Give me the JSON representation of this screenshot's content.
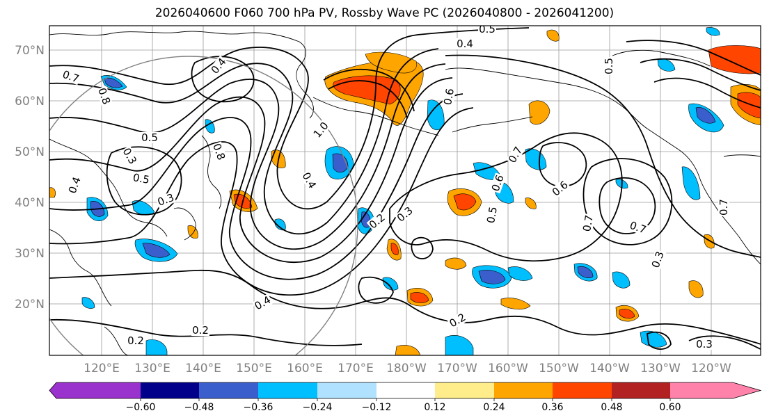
{
  "title": "2026040600 F060 700 hPa PV, Rossby Wave PC (2026040800 - 2026041200)",
  "lat_labels": [
    "70°N",
    "60°N",
    "50°N",
    "40°N",
    "30°N",
    "20°N"
  ],
  "lon_labels": [
    "120°E",
    "130°E",
    "140°E",
    "150°E",
    "160°E",
    "170°E",
    "180°W",
    "170°W",
    "160°W",
    "150°W",
    "140°W",
    "130°W",
    "120°W"
  ],
  "colorbar": {
    "colors": [
      "#9a32cd",
      "#00008b",
      "#3a5fcd",
      "#00bfff",
      "#b0e2ff",
      "#ffffff",
      "#ffec8b",
      "#ffa500",
      "#ff4500",
      "#b22222",
      "#ff82ab"
    ],
    "labels": [
      "−0.60",
      "−0.48",
      "−0.36",
      "−0.24",
      "−0.12",
      "0.12",
      "0.24",
      "0.36",
      "0.48",
      "0.60"
    ]
  },
  "contour_labels": [
    "0.5",
    "0.4",
    "0.4",
    "0.7",
    "0.8",
    "0.5",
    "0.3",
    "0.5",
    "0.8",
    "1.0",
    "0.6",
    "0.7",
    "0.6",
    "0.6",
    "0.7",
    "0.3",
    "0.5",
    "0.2",
    "0.3",
    "0.4",
    "0.2",
    "0.2",
    "0.3",
    "0.2",
    "0.4",
    "0.3",
    "0.7",
    "0.5",
    "0.7",
    "0.4"
  ]
}
